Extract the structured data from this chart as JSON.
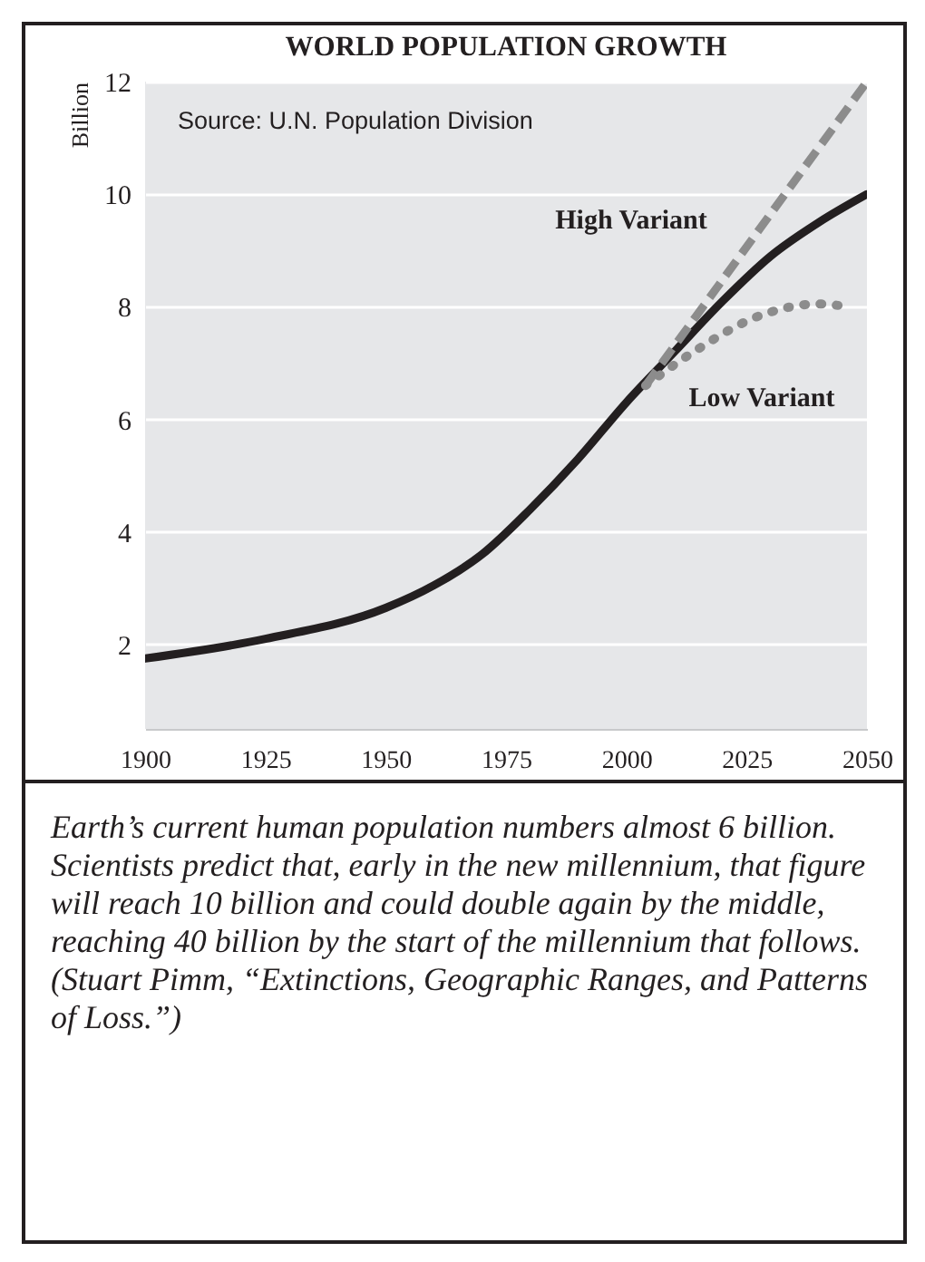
{
  "chart_data": {
    "type": "line",
    "title": "WORLD POPULATION GROWTH",
    "ylabel": "Billion",
    "xlim": [
      1900,
      2050
    ],
    "xticks": [
      1900,
      1925,
      1950,
      1975,
      2000,
      2025,
      2050
    ],
    "ylim": [
      0.5,
      12
    ],
    "yticks": [
      2,
      4,
      6,
      8,
      10,
      12
    ],
    "grid": "y",
    "series": [
      {
        "color": "#231f20",
        "line_style": "solid",
        "x": [
          1900,
          1925,
          1950,
          1960,
          1970,
          1980,
          1990,
          2000,
          2010,
          2020,
          2030,
          2040,
          2050
        ],
        "values": [
          1.75,
          2.1,
          2.65,
          3.05,
          3.6,
          4.4,
          5.3,
          6.3,
          7.2,
          8.1,
          8.9,
          9.5,
          10
        ]
      },
      {
        "color": "#8c8c8c",
        "line_style": "dashed",
        "x": [
          2004,
          2050
        ],
        "values": [
          6.6,
          12
        ]
      },
      {
        "color": "#8c8c8c",
        "line_style": "dotted",
        "x": [
          2004,
          2014,
          2028,
          2040,
          2046
        ],
        "values": [
          6.6,
          7.2,
          7.85,
          8.05,
          8.0
        ]
      }
    ],
    "annotations": [
      "Source: U.N. Population Division",
      "High Variant",
      "Low Variant",
      "Earth’s current human population numbers almost 6 billion. Scientists predict that, early in the new millennium, that figure will reach 10 billion and could double again by the middle, reaching 40 billion by the start of the millennium that follows. (Stuart Pimm, “Extinctions, Geographic Ranges, and Patterns of Loss.”)"
    ]
  }
}
